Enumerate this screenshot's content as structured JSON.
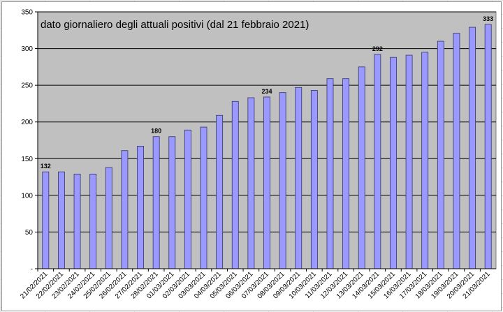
{
  "chart_data": {
    "type": "bar",
    "title": "dato giornaliero degli attuali positivi (dal 21 febbraio 2021)",
    "categories": [
      "21/02/2021",
      "22/02/2021",
      "23/02/2021",
      "24/02/2021",
      "25/02/2021",
      "26/02/2021",
      "27/02/2021",
      "28/02/2021",
      "01/03/2021",
      "02/03/2021",
      "03/03/2021",
      "04/03/2021",
      "05/03/2021",
      "06/03/2021",
      "07/03/2021",
      "08/03/2021",
      "09/03/2021",
      "10/03/2021",
      "11/03/2021",
      "12/03/2021",
      "13/03/2021",
      "14/03/2021",
      "15/03/2021",
      "16/03/2021",
      "17/03/2021",
      "18/03/2021",
      "19/03/2021",
      "20/03/2021",
      "21/03/2021"
    ],
    "values": [
      132,
      132,
      129,
      129,
      138,
      161,
      167,
      180,
      180,
      189,
      193,
      209,
      228,
      233,
      234,
      240,
      247,
      243,
      259,
      259,
      275,
      292,
      288,
      291,
      295,
      310,
      321,
      329,
      333
    ],
    "data_labels": [
      {
        "index": 0,
        "text": "132"
      },
      {
        "index": 7,
        "text": "180"
      },
      {
        "index": 14,
        "text": "234"
      },
      {
        "index": 21,
        "text": "292"
      },
      {
        "index": 28,
        "text": "333"
      }
    ],
    "y_ticks": [
      "-",
      "50",
      "100",
      "150",
      "200",
      "250",
      "300",
      "350"
    ],
    "ylim": [
      0,
      350
    ],
    "grid": true,
    "colors": {
      "plot_bg": "#c0c0c0",
      "bar_fill": "#9999ff",
      "bar_stroke": "#333366",
      "gridline": "#000000"
    }
  }
}
